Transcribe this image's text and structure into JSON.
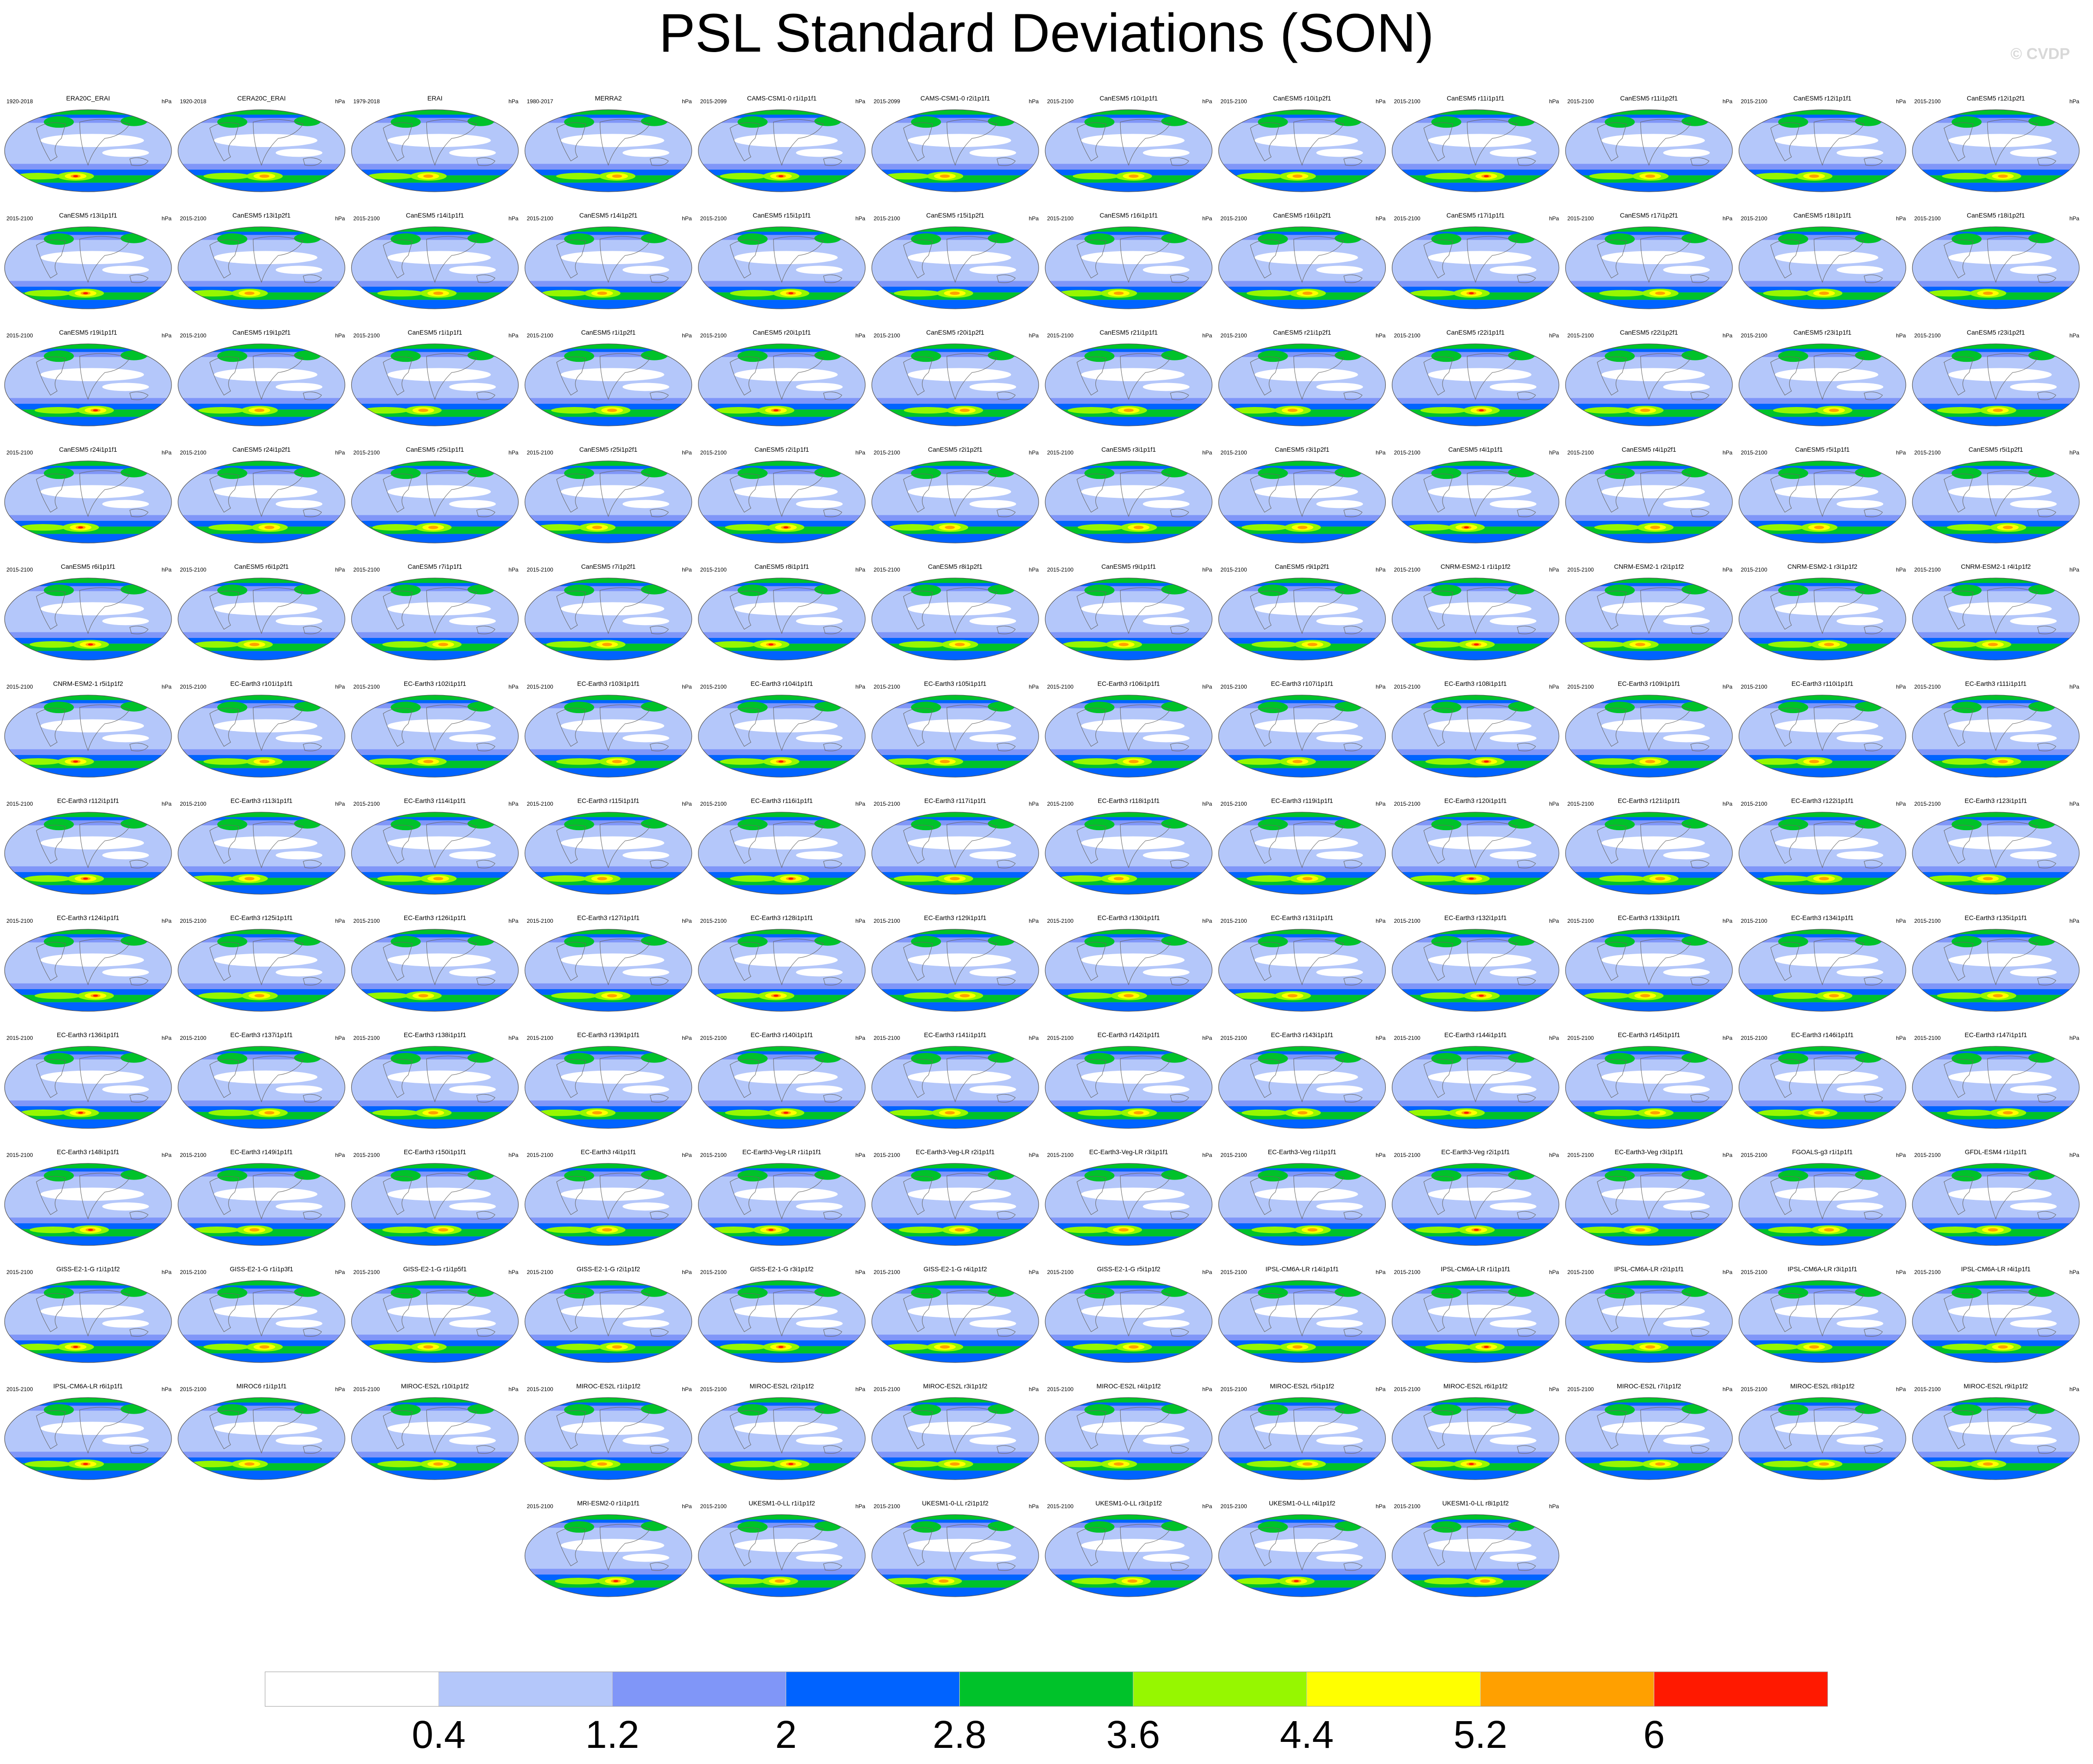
{
  "title": "PSL Standard Deviations (SON)",
  "credit": "© CVDP",
  "units": "hPa",
  "chart_data": {
    "type": "heatmap",
    "title": "PSL Standard Deviations (SON)",
    "projection": "global map panel grid",
    "units": "hPa",
    "colorbar": {
      "levels": [
        0.4,
        1.2,
        2,
        2.8,
        3.6,
        4.4,
        5.2,
        6
      ],
      "colors": [
        "#ffffff",
        "#b4c7fa",
        "#8096f8",
        "#0063ff",
        "#00c22a",
        "#96f700",
        "#ffff00",
        "#ffa000",
        "#ff1900"
      ]
    },
    "panels": [
      {
        "name": "ERA20C_ERAI",
        "period": "1920-2018"
      },
      {
        "name": "CERA20C_ERAI",
        "period": "1920-2018"
      },
      {
        "name": "ERAI",
        "period": "1979-2018"
      },
      {
        "name": "MERRA2",
        "period": "1980-2017"
      },
      {
        "name": "CAMS-CSM1-0 r1i1p1f1",
        "period": "2015-2099"
      },
      {
        "name": "CAMS-CSM1-0 r2i1p1f1",
        "period": "2015-2099"
      },
      {
        "name": "CanESM5 r10i1p1f1",
        "period": "2015-2100"
      },
      {
        "name": "CanESM5 r10i1p2f1",
        "period": "2015-2100"
      },
      {
        "name": "CanESM5 r11i1p1f1",
        "period": "2015-2100"
      },
      {
        "name": "CanESM5 r11i1p2f1",
        "period": "2015-2100"
      },
      {
        "name": "CanESM5 r12i1p1f1",
        "period": "2015-2100"
      },
      {
        "name": "CanESM5 r12i1p2f1",
        "period": "2015-2100"
      },
      {
        "name": "CanESM5 r13i1p1f1",
        "period": "2015-2100"
      },
      {
        "name": "CanESM5 r13i1p2f1",
        "period": "2015-2100"
      },
      {
        "name": "CanESM5 r14i1p1f1",
        "period": "2015-2100"
      },
      {
        "name": "CanESM5 r14i1p2f1",
        "period": "2015-2100"
      },
      {
        "name": "CanESM5 r15i1p1f1",
        "period": "2015-2100"
      },
      {
        "name": "CanESM5 r15i1p2f1",
        "period": "2015-2100"
      },
      {
        "name": "CanESM5 r16i1p1f1",
        "period": "2015-2100"
      },
      {
        "name": "CanESM5 r16i1p2f1",
        "period": "2015-2100"
      },
      {
        "name": "CanESM5 r17i1p1f1",
        "period": "2015-2100"
      },
      {
        "name": "CanESM5 r17i1p2f1",
        "period": "2015-2100"
      },
      {
        "name": "CanESM5 r18i1p1f1",
        "period": "2015-2100"
      },
      {
        "name": "CanESM5 r18i1p2f1",
        "period": "2015-2100"
      },
      {
        "name": "CanESM5 r19i1p1f1",
        "period": "2015-2100"
      },
      {
        "name": "CanESM5 r19i1p2f1",
        "period": "2015-2100"
      },
      {
        "name": "CanESM5 r1i1p1f1",
        "period": "2015-2100"
      },
      {
        "name": "CanESM5 r1i1p2f1",
        "period": "2015-2100"
      },
      {
        "name": "CanESM5 r20i1p1f1",
        "period": "2015-2100"
      },
      {
        "name": "CanESM5 r20i1p2f1",
        "period": "2015-2100"
      },
      {
        "name": "CanESM5 r21i1p1f1",
        "period": "2015-2100"
      },
      {
        "name": "CanESM5 r21i1p2f1",
        "period": "2015-2100"
      },
      {
        "name": "CanESM5 r22i1p1f1",
        "period": "2015-2100"
      },
      {
        "name": "CanESM5 r22i1p2f1",
        "period": "2015-2100"
      },
      {
        "name": "CanESM5 r23i1p1f1",
        "period": "2015-2100"
      },
      {
        "name": "CanESM5 r23i1p2f1",
        "period": "2015-2100"
      },
      {
        "name": "CanESM5 r24i1p1f1",
        "period": "2015-2100"
      },
      {
        "name": "CanESM5 r24i1p2f1",
        "period": "2015-2100"
      },
      {
        "name": "CanESM5 r25i1p1f1",
        "period": "2015-2100"
      },
      {
        "name": "CanESM5 r25i1p2f1",
        "period": "2015-2100"
      },
      {
        "name": "CanESM5 r2i1p1f1",
        "period": "2015-2100"
      },
      {
        "name": "CanESM5 r2i1p2f1",
        "period": "2015-2100"
      },
      {
        "name": "CanESM5 r3i1p1f1",
        "period": "2015-2100"
      },
      {
        "name": "CanESM5 r3i1p2f1",
        "period": "2015-2100"
      },
      {
        "name": "CanESM5 r4i1p1f1",
        "period": "2015-2100"
      },
      {
        "name": "CanESM5 r4i1p2f1",
        "period": "2015-2100"
      },
      {
        "name": "CanESM5 r5i1p1f1",
        "period": "2015-2100"
      },
      {
        "name": "CanESM5 r5i1p2f1",
        "period": "2015-2100"
      },
      {
        "name": "CanESM5 r6i1p1f1",
        "period": "2015-2100"
      },
      {
        "name": "CanESM5 r6i1p2f1",
        "period": "2015-2100"
      },
      {
        "name": "CanESM5 r7i1p1f1",
        "period": "2015-2100"
      },
      {
        "name": "CanESM5 r7i1p2f1",
        "period": "2015-2100"
      },
      {
        "name": "CanESM5 r8i1p1f1",
        "period": "2015-2100"
      },
      {
        "name": "CanESM5 r8i1p2f1",
        "period": "2015-2100"
      },
      {
        "name": "CanESM5 r9i1p1f1",
        "period": "2015-2100"
      },
      {
        "name": "CanESM5 r9i1p2f1",
        "period": "2015-2100"
      },
      {
        "name": "CNRM-ESM2-1 r1i1p1f2",
        "period": "2015-2100"
      },
      {
        "name": "CNRM-ESM2-1 r2i1p1f2",
        "period": "2015-2100"
      },
      {
        "name": "CNRM-ESM2-1 r3i1p1f2",
        "period": "2015-2100"
      },
      {
        "name": "CNRM-ESM2-1 r4i1p1f2",
        "period": "2015-2100"
      },
      {
        "name": "CNRM-ESM2-1 r5i1p1f2",
        "period": "2015-2100"
      },
      {
        "name": "EC-Earth3 r101i1p1f1",
        "period": "2015-2100"
      },
      {
        "name": "EC-Earth3 r102i1p1f1",
        "period": "2015-2100"
      },
      {
        "name": "EC-Earth3 r103i1p1f1",
        "period": "2015-2100"
      },
      {
        "name": "EC-Earth3 r104i1p1f1",
        "period": "2015-2100"
      },
      {
        "name": "EC-Earth3 r105i1p1f1",
        "period": "2015-2100"
      },
      {
        "name": "EC-Earth3 r106i1p1f1",
        "period": "2015-2100"
      },
      {
        "name": "EC-Earth3 r107i1p1f1",
        "period": "2015-2100"
      },
      {
        "name": "EC-Earth3 r108i1p1f1",
        "period": "2015-2100"
      },
      {
        "name": "EC-Earth3 r109i1p1f1",
        "period": "2015-2100"
      },
      {
        "name": "EC-Earth3 r110i1p1f1",
        "period": "2015-2100"
      },
      {
        "name": "EC-Earth3 r111i1p1f1",
        "period": "2015-2100"
      },
      {
        "name": "EC-Earth3 r112i1p1f1",
        "period": "2015-2100"
      },
      {
        "name": "EC-Earth3 r113i1p1f1",
        "period": "2015-2100"
      },
      {
        "name": "EC-Earth3 r114i1p1f1",
        "period": "2015-2100"
      },
      {
        "name": "EC-Earth3 r115i1p1f1",
        "period": "2015-2100"
      },
      {
        "name": "EC-Earth3 r116i1p1f1",
        "period": "2015-2100"
      },
      {
        "name": "EC-Earth3 r117i1p1f1",
        "period": "2015-2100"
      },
      {
        "name": "EC-Earth3 r118i1p1f1",
        "period": "2015-2100"
      },
      {
        "name": "EC-Earth3 r119i1p1f1",
        "period": "2015-2100"
      },
      {
        "name": "EC-Earth3 r120i1p1f1",
        "period": "2015-2100"
      },
      {
        "name": "EC-Earth3 r121i1p1f1",
        "period": "2015-2100"
      },
      {
        "name": "EC-Earth3 r122i1p1f1",
        "period": "2015-2100"
      },
      {
        "name": "EC-Earth3 r123i1p1f1",
        "period": "2015-2100"
      },
      {
        "name": "EC-Earth3 r124i1p1f1",
        "period": "2015-2100"
      },
      {
        "name": "EC-Earth3 r125i1p1f1",
        "period": "2015-2100"
      },
      {
        "name": "EC-Earth3 r126i1p1f1",
        "period": "2015-2100"
      },
      {
        "name": "EC-Earth3 r127i1p1f1",
        "period": "2015-2100"
      },
      {
        "name": "EC-Earth3 r128i1p1f1",
        "period": "2015-2100"
      },
      {
        "name": "EC-Earth3 r129i1p1f1",
        "period": "2015-2100"
      },
      {
        "name": "EC-Earth3 r130i1p1f1",
        "period": "2015-2100"
      },
      {
        "name": "EC-Earth3 r131i1p1f1",
        "period": "2015-2100"
      },
      {
        "name": "EC-Earth3 r132i1p1f1",
        "period": "2015-2100"
      },
      {
        "name": "EC-Earth3 r133i1p1f1",
        "period": "2015-2100"
      },
      {
        "name": "EC-Earth3 r134i1p1f1",
        "period": "2015-2100"
      },
      {
        "name": "EC-Earth3 r135i1p1f1",
        "period": "2015-2100"
      },
      {
        "name": "EC-Earth3 r136i1p1f1",
        "period": "2015-2100"
      },
      {
        "name": "EC-Earth3 r137i1p1f1",
        "period": "2015-2100"
      },
      {
        "name": "EC-Earth3 r138i1p1f1",
        "period": "2015-2100"
      },
      {
        "name": "EC-Earth3 r139i1p1f1",
        "period": "2015-2100"
      },
      {
        "name": "EC-Earth3 r140i1p1f1",
        "period": "2015-2100"
      },
      {
        "name": "EC-Earth3 r141i1p1f1",
        "period": "2015-2100"
      },
      {
        "name": "EC-Earth3 r142i1p1f1",
        "period": "2015-2100"
      },
      {
        "name": "EC-Earth3 r143i1p1f1",
        "period": "2015-2100"
      },
      {
        "name": "EC-Earth3 r144i1p1f1",
        "period": "2015-2100"
      },
      {
        "name": "EC-Earth3 r145i1p1f1",
        "period": "2015-2100"
      },
      {
        "name": "EC-Earth3 r146i1p1f1",
        "period": "2015-2100"
      },
      {
        "name": "EC-Earth3 r147i1p1f1",
        "period": "2015-2100"
      },
      {
        "name": "EC-Earth3 r148i1p1f1",
        "period": "2015-2100"
      },
      {
        "name": "EC-Earth3 r149i1p1f1",
        "period": "2015-2100"
      },
      {
        "name": "EC-Earth3 r150i1p1f1",
        "period": "2015-2100"
      },
      {
        "name": "EC-Earth3 r4i1p1f1",
        "period": "2015-2100"
      },
      {
        "name": "EC-Earth3-Veg-LR r1i1p1f1",
        "period": "2015-2100"
      },
      {
        "name": "EC-Earth3-Veg-LR r2i1p1f1",
        "period": "2015-2100"
      },
      {
        "name": "EC-Earth3-Veg-LR r3i1p1f1",
        "period": "2015-2100"
      },
      {
        "name": "EC-Earth3-Veg r1i1p1f1",
        "period": "2015-2100"
      },
      {
        "name": "EC-Earth3-Veg r2i1p1f1",
        "period": "2015-2100"
      },
      {
        "name": "EC-Earth3-Veg r3i1p1f1",
        "period": "2015-2100"
      },
      {
        "name": "FGOALS-g3 r1i1p1f1",
        "period": "2015-2100"
      },
      {
        "name": "GFDL-ESM4 r1i1p1f1",
        "period": "2015-2100"
      },
      {
        "name": "GISS-E2-1-G r1i1p1f2",
        "period": "2015-2100"
      },
      {
        "name": "GISS-E2-1-G r1i1p3f1",
        "period": "2015-2100"
      },
      {
        "name": "GISS-E2-1-G r1i1p5f1",
        "period": "2015-2100"
      },
      {
        "name": "GISS-E2-1-G r2i1p1f2",
        "period": "2015-2100"
      },
      {
        "name": "GISS-E2-1-G r3i1p1f2",
        "period": "2015-2100"
      },
      {
        "name": "GISS-E2-1-G r4i1p1f2",
        "period": "2015-2100"
      },
      {
        "name": "GISS-E2-1-G r5i1p1f2",
        "period": "2015-2100"
      },
      {
        "name": "IPSL-CM6A-LR r14i1p1f1",
        "period": "2015-2100"
      },
      {
        "name": "IPSL-CM6A-LR r1i1p1f1",
        "period": "2015-2100"
      },
      {
        "name": "IPSL-CM6A-LR r2i1p1f1",
        "period": "2015-2100"
      },
      {
        "name": "IPSL-CM6A-LR r3i1p1f1",
        "period": "2015-2100"
      },
      {
        "name": "IPSL-CM6A-LR r4i1p1f1",
        "period": "2015-2100"
      },
      {
        "name": "IPSL-CM6A-LR r6i1p1f1",
        "period": "2015-2100"
      },
      {
        "name": "MIROC6 r1i1p1f1",
        "period": "2015-2100"
      },
      {
        "name": "MIROC-ES2L r10i1p1f2",
        "period": "2015-2100"
      },
      {
        "name": "MIROC-ES2L r1i1p1f2",
        "period": "2015-2100"
      },
      {
        "name": "MIROC-ES2L r2i1p1f2",
        "period": "2015-2100"
      },
      {
        "name": "MIROC-ES2L r3i1p1f2",
        "period": "2015-2100"
      },
      {
        "name": "MIROC-ES2L r4i1p1f2",
        "period": "2015-2100"
      },
      {
        "name": "MIROC-ES2L r5i1p1f2",
        "period": "2015-2100"
      },
      {
        "name": "MIROC-ES2L r6i1p1f2",
        "period": "2015-2100"
      },
      {
        "name": "MIROC-ES2L r7i1p1f2",
        "period": "2015-2100"
      },
      {
        "name": "MIROC-ES2L r8i1p1f2",
        "period": "2015-2100"
      },
      {
        "name": "MIROC-ES2L r9i1p1f2",
        "period": "2015-2100"
      },
      {
        "name": "MRI-ESM2-0 r1i1p1f1",
        "period": "2015-2100"
      },
      {
        "name": "UKESM1-0-LL r1i1p1f2",
        "period": "2015-2100"
      },
      {
        "name": "UKESM1-0-LL r2i1p1f2",
        "period": "2015-2100"
      },
      {
        "name": "UKESM1-0-LL r3i1p1f2",
        "period": "2015-2100"
      },
      {
        "name": "UKESM1-0-LL r4i1p1f2",
        "period": "2015-2100"
      },
      {
        "name": "UKESM1-0-LL r8i1p1f2",
        "period": "2015-2100"
      }
    ]
  }
}
